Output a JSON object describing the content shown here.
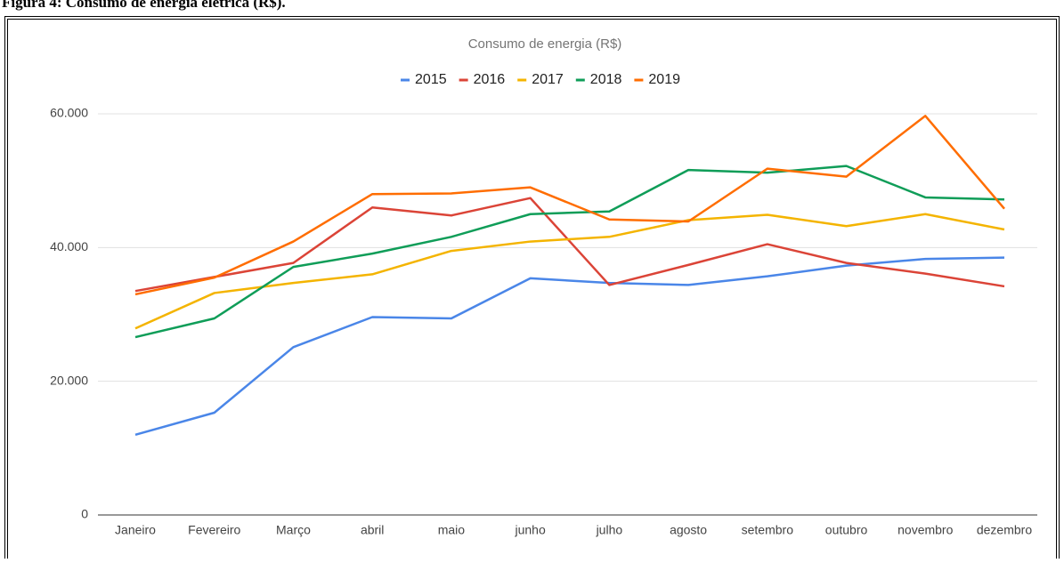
{
  "caption": "Figura 4: Consumo de energia elétrica (R$).",
  "chart_data": {
    "type": "line",
    "title": "Consumo de energia (R$)",
    "categories": [
      "Janeiro",
      "Fevereiro",
      "Março",
      "abril",
      "maio",
      "junho",
      "julho",
      "agosto",
      "setembro",
      "outubro",
      "novembro",
      "dezembro"
    ],
    "series": [
      {
        "name": "2015",
        "color": "#4a86e8",
        "values": [
          12000,
          15300,
          25100,
          29600,
          29400,
          35400,
          34700,
          34400,
          35700,
          37300,
          38300,
          38500
        ]
      },
      {
        "name": "2016",
        "color": "#db4437",
        "values": [
          33500,
          35600,
          37700,
          46000,
          44800,
          47400,
          34400,
          37400,
          40500,
          37700,
          36100,
          34200
        ]
      },
      {
        "name": "2017",
        "color": "#f4b400",
        "values": [
          27900,
          33200,
          34700,
          36000,
          39500,
          40900,
          41600,
          44100,
          44900,
          43200,
          45000,
          42700
        ]
      },
      {
        "name": "2018",
        "color": "#0f9d58",
        "values": [
          26600,
          29400,
          37100,
          39100,
          41600,
          45000,
          45400,
          51600,
          51200,
          52200,
          47500,
          47200
        ]
      },
      {
        "name": "2019",
        "color": "#ff6d01",
        "values": [
          33000,
          35500,
          40900,
          48000,
          48100,
          49000,
          44200,
          43900,
          51800,
          50600,
          59700,
          45800
        ]
      }
    ],
    "ylim": [
      0,
      60000
    ],
    "yticks": [
      0,
      {
        "value": 20000,
        "label": "20.000"
      },
      {
        "value": 40000,
        "label": "40.000"
      },
      {
        "value": 60000,
        "label": "60.000"
      }
    ],
    "grid": true,
    "legend": "top"
  }
}
